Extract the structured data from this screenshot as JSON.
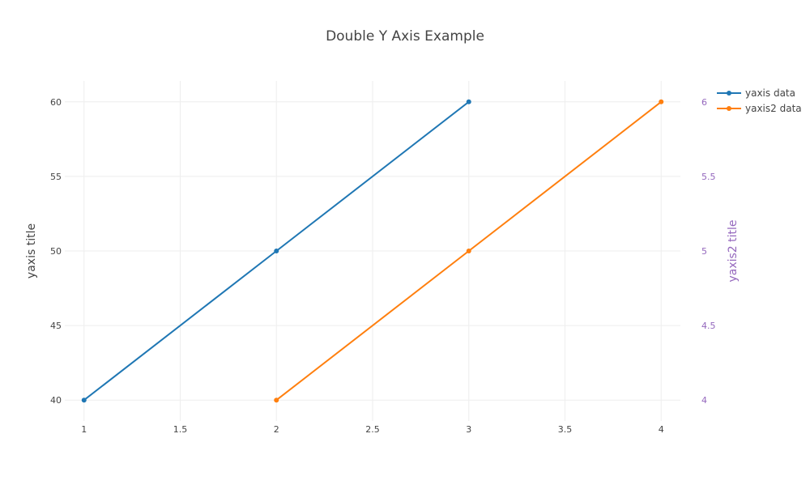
{
  "chart_data": {
    "type": "line",
    "title": "Double Y Axis Example",
    "xlabel": "",
    "ylabel": "yaxis title",
    "y2label": "yaxis2 title",
    "xlim": [
      0.9,
      4.1
    ],
    "ylim": [
      38.6,
      61.4
    ],
    "y2lim": [
      3.86,
      6.14
    ],
    "x_ticks": [
      1,
      1.5,
      2,
      2.5,
      3,
      3.5,
      4
    ],
    "x_tick_labels": [
      "1",
      "1.5",
      "2",
      "2.5",
      "3",
      "3.5",
      "4"
    ],
    "y_ticks": [
      40,
      45,
      50,
      55,
      60
    ],
    "y_tick_labels": [
      "40",
      "45",
      "50",
      "55",
      "60"
    ],
    "y2_ticks": [
      4,
      4.5,
      5,
      5.5,
      6
    ],
    "y2_tick_labels": [
      "4",
      "4.5",
      "5",
      "5.5",
      "6"
    ],
    "grid": true,
    "legend_position": "top-right",
    "series": [
      {
        "name": "yaxis data",
        "axis": "y",
        "color": "#1f77b4",
        "x": [
          1,
          2,
          3
        ],
        "y": [
          40,
          50,
          60
        ]
      },
      {
        "name": "yaxis2 data",
        "axis": "y2",
        "color": "#ff7f0e",
        "x": [
          2,
          3,
          4
        ],
        "y": [
          4,
          5,
          6
        ]
      }
    ],
    "colors": {
      "text": "#444444",
      "y2_axis": "#9467bd",
      "grid": "#eeeeee"
    }
  }
}
